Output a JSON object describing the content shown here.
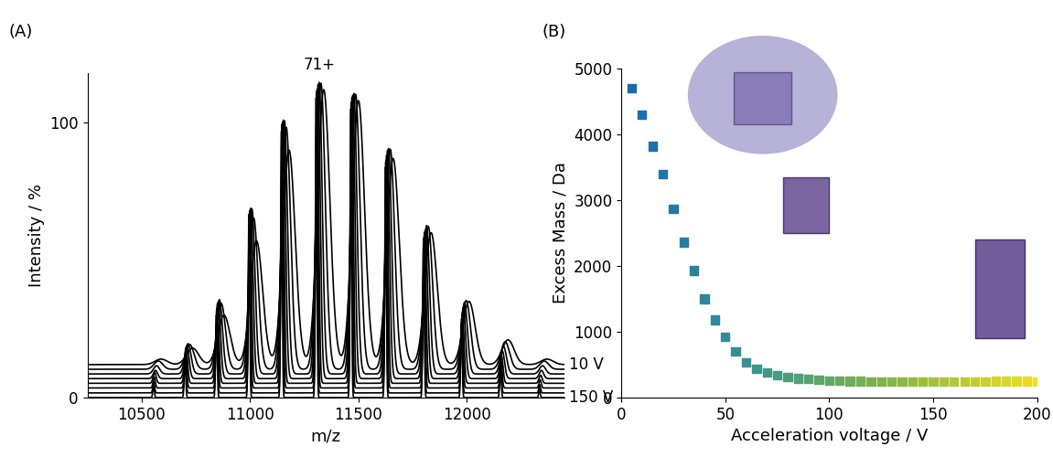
{
  "chart_data": [
    {
      "type": "line",
      "label": "(A)",
      "x_label": "m/z",
      "y_label": "Intensity / %",
      "xlim": [
        10250,
        12450
      ],
      "ylim": [
        0,
        118
      ],
      "xticks": [
        10500,
        11000,
        11500,
        12000
      ],
      "yticks": [
        0,
        100
      ],
      "color": "#000000",
      "annotations": [
        {
          "text": "71+",
          "x": 11320
        }
      ],
      "traces": [
        {
          "label": "10 V",
          "offset": 12,
          "width": 28,
          "mz": [
            10590,
            10735,
            10880,
            11030,
            11180,
            11340,
            11500,
            11660,
            11835,
            12010,
            12190,
            12370
          ],
          "intensity": [
            2,
            6,
            18,
            45,
            78,
            100,
            96,
            75,
            48,
            23,
            9,
            2
          ]
        },
        {
          "offset": 10.3,
          "width": 20,
          "mz": [
            10577,
            10722,
            10867,
            11017,
            11167,
            11327,
            11487,
            11647,
            11822,
            11997,
            12177,
            12357
          ],
          "intensity": [
            3,
            9,
            24,
            55,
            88,
            104,
            100,
            80,
            52,
            25,
            10,
            3
          ]
        },
        {
          "offset": 8.6,
          "width": 14,
          "mz": [
            10569,
            10714,
            10859,
            11009,
            11159,
            11319,
            11479,
            11639,
            11814,
            11989,
            12169,
            12349
          ],
          "intensity": [
            3,
            11,
            27,
            60,
            92,
            106,
            102,
            82,
            54,
            26,
            10,
            3
          ]
        },
        {
          "offset": 6.9,
          "width": 10,
          "mz": [
            10564,
            10709,
            10854,
            11004,
            11154,
            11314,
            11474,
            11634,
            11809,
            11984,
            12164,
            12344
          ],
          "intensity": [
            3,
            12,
            28,
            62,
            94,
            107,
            103,
            83,
            54,
            26,
            10,
            3
          ]
        },
        {
          "offset": 5.2,
          "width": 7,
          "mz": [
            10560,
            10705,
            10850,
            11000,
            11150,
            11310,
            11470,
            11630,
            11805,
            11980,
            12160,
            12340
          ],
          "intensity": [
            4,
            13,
            29,
            63,
            95,
            107,
            104,
            83,
            55,
            26,
            10,
            3
          ]
        },
        {
          "offset": 3.5,
          "width": 5,
          "mz": [
            10558,
            10703,
            10848,
            10998,
            11148,
            11308,
            11468,
            11628,
            11803,
            11978,
            12158,
            12338
          ],
          "intensity": [
            4,
            14,
            29,
            64,
            96,
            108,
            104,
            83,
            55,
            26,
            10,
            3
          ]
        },
        {
          "offset": 1.7,
          "width": 4,
          "mz": [
            10556,
            10701,
            10846,
            10996,
            11146,
            11306,
            11466,
            11626,
            11801,
            11976,
            12156,
            12336
          ],
          "intensity": [
            4,
            14,
            30,
            65,
            96,
            108,
            105,
            84,
            56,
            27,
            10,
            3
          ]
        },
        {
          "label": "150 V",
          "offset": 0,
          "width": 3.5,
          "mz": [
            10555,
            10700,
            10845,
            10995,
            11145,
            11305,
            11465,
            11625,
            11800,
            11975,
            12155,
            12335
          ],
          "intensity": [
            4,
            14,
            30,
            65,
            97,
            109,
            105,
            84,
            56,
            27,
            10,
            3
          ]
        }
      ]
    },
    {
      "type": "scatter",
      "label": "(B)",
      "x_label": "Acceleration voltage / V",
      "y_label": "Excess Mass / Da",
      "xlim": [
        0,
        200
      ],
      "ylim": [
        0,
        5000
      ],
      "xticks": [
        0,
        50,
        100,
        150,
        200
      ],
      "yticks": [
        0,
        1000,
        2000,
        3000,
        4000,
        5000
      ],
      "marker": "square",
      "x": [
        5,
        10,
        15,
        20,
        25,
        30,
        35,
        40,
        45,
        50,
        55,
        60,
        65,
        70,
        75,
        80,
        85,
        90,
        95,
        100,
        105,
        110,
        115,
        120,
        125,
        130,
        135,
        140,
        145,
        150,
        155,
        160,
        165,
        170,
        175,
        180,
        185,
        190,
        195,
        200
      ],
      "values": [
        4700,
        4300,
        3820,
        3400,
        2870,
        2360,
        1930,
        1500,
        1180,
        920,
        700,
        530,
        440,
        380,
        340,
        310,
        290,
        280,
        270,
        260,
        255,
        250,
        248,
        245,
        243,
        242,
        240,
        240,
        240,
        240,
        240,
        240,
        242,
        243,
        245,
        248,
        250,
        252,
        250,
        245
      ],
      "colors": [
        "#1a6ab0",
        "#1d6ead",
        "#1f71aa",
        "#2275a7",
        "#2579a4",
        "#287ca1",
        "#2a809e",
        "#2d849b",
        "#308898",
        "#338b95",
        "#358f92",
        "#38928f",
        "#3a968c",
        "#409887",
        "#469b81",
        "#4c9d7c",
        "#52a076",
        "#58a271",
        "#5da56c",
        "#63a766",
        "#69aa61",
        "#6fac5c",
        "#75af56",
        "#7bb151",
        "#80b44b",
        "#86b646",
        "#8cb940",
        "#94bc3e",
        "#9bbf3b",
        "#a3c239",
        "#abc536",
        "#b2c834",
        "#bacb31",
        "#c2ce2f",
        "#cad12c",
        "#d1d42a",
        "#d9d727",
        "#e1da25",
        "#e8dd22",
        "#f0e020"
      ]
    }
  ]
}
